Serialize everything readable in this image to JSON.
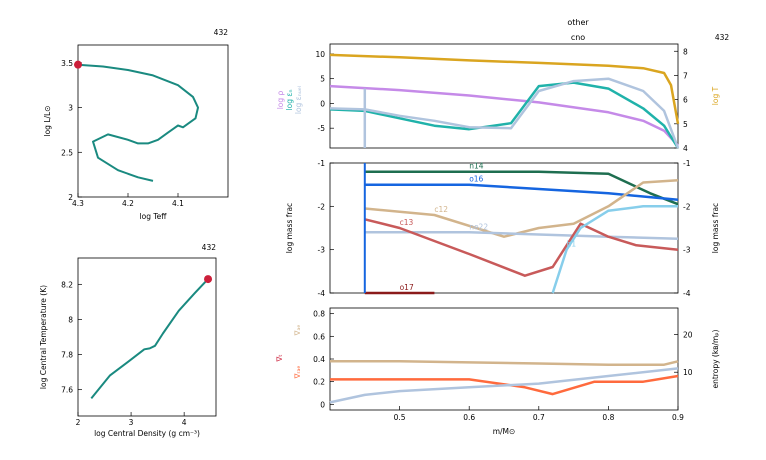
{
  "header": {
    "model_number": "432",
    "line1": "other",
    "line2": "cno"
  },
  "colors": {
    "teal": "#1a8a80",
    "red_dot": "#cc1f3a",
    "gold": "#daa520",
    "violet": "#c58ae8",
    "teal2": "#20b2aa",
    "lightblue": "#b0c4de",
    "darkgreen": "#1e6e50",
    "blue": "#1565e0",
    "tan": "#d2b48c",
    "indianred": "#c85a5a",
    "maroon": "#8b1a1a",
    "skyblue": "#87ceeb",
    "orange": "#ff6a3d",
    "gray": "#a0a0a0"
  },
  "chart_data": [
    {
      "id": "hr",
      "type": "line",
      "title": "432",
      "xlabel": "log Teff",
      "ylabel": "log L/L⊙",
      "xlim": [
        4.3,
        4.0
      ],
      "ylim": [
        2.0,
        3.7
      ],
      "xticks": [
        "4.3",
        "4.2",
        "4.1"
      ],
      "yticks": [
        "2",
        "2.5",
        "3",
        "3.5"
      ],
      "series": [
        {
          "x": [
            4.3,
            4.25,
            4.2,
            4.15,
            4.1,
            4.07,
            4.06,
            4.065,
            4.09,
            4.1,
            4.12,
            4.14,
            4.16,
            4.18,
            4.2,
            4.24,
            4.27,
            4.26,
            4.22,
            4.18,
            4.15
          ],
          "y": [
            3.48,
            3.46,
            3.42,
            3.36,
            3.25,
            3.12,
            3.0,
            2.88,
            2.78,
            2.8,
            2.72,
            2.64,
            2.6,
            2.6,
            2.64,
            2.7,
            2.62,
            2.44,
            2.3,
            2.22,
            2.18
          ]
        }
      ],
      "marker": {
        "x": 4.3,
        "y": 3.48
      }
    },
    {
      "id": "central",
      "type": "line",
      "title": "432",
      "xlabel": "log Central Density (g cm⁻³)",
      "ylabel": "log Central Temperature (K)",
      "xlim": [
        2.0,
        4.6
      ],
      "ylim": [
        7.45,
        8.35
      ],
      "xticks": [
        "2",
        "3",
        "4"
      ],
      "yticks": [
        "7.6",
        "7.8",
        "8",
        "8.2"
      ],
      "series": [
        {
          "x": [
            2.25,
            2.6,
            2.95,
            3.25,
            3.35,
            3.45,
            3.6,
            3.9,
            4.2,
            4.45
          ],
          "y": [
            7.55,
            7.68,
            7.76,
            7.83,
            7.835,
            7.85,
            7.92,
            8.05,
            8.15,
            8.23
          ]
        }
      ],
      "marker": {
        "x": 4.45,
        "y": 8.23
      }
    },
    {
      "id": "structure",
      "type": "line",
      "xlim": [
        0.4,
        0.9
      ],
      "ylim": [
        -9,
        12
      ],
      "y2lim": [
        4,
        8.3
      ],
      "yticks": [
        "-5",
        "0",
        "5",
        "10"
      ],
      "y2ticks": [
        "4",
        "5",
        "6",
        "7",
        "8"
      ],
      "ylabels": [
        "log ρ",
        "log εₙ",
        "log εₙᵤₑₗ"
      ],
      "y2label": "log T",
      "series": [
        {
          "name": "log T",
          "axis": "right",
          "x": [
            0.4,
            0.5,
            0.6,
            0.7,
            0.8,
            0.85,
            0.88,
            0.89,
            0.9
          ],
          "y": [
            7.85,
            7.75,
            7.62,
            7.52,
            7.4,
            7.3,
            7.1,
            6.6,
            5.0
          ]
        },
        {
          "name": "log ρ",
          "x": [
            0.4,
            0.5,
            0.6,
            0.7,
            0.8,
            0.85,
            0.88,
            0.9
          ],
          "y": [
            3.5,
            2.7,
            1.6,
            0.2,
            -1.8,
            -3.5,
            -5.5,
            -8.5
          ]
        },
        {
          "name": "log εₙᵤₑₗ",
          "x": [
            0.4,
            0.45,
            0.5,
            0.55,
            0.6,
            0.66,
            0.7,
            0.75,
            0.8,
            0.85,
            0.88,
            0.9
          ],
          "y": [
            -1.2,
            -1.5,
            -3.0,
            -4.5,
            -5.2,
            -4.0,
            3.5,
            4.2,
            3.0,
            -1.0,
            -4.5,
            -9.0
          ]
        },
        {
          "name": "log εₙ",
          "x": [
            0.4,
            0.45,
            0.5,
            0.55,
            0.6,
            0.66,
            0.7,
            0.75,
            0.8,
            0.85,
            0.88,
            0.9
          ],
          "y": [
            -1.0,
            -1.2,
            -2.5,
            -3.5,
            -4.8,
            -5.0,
            2.5,
            4.5,
            5.0,
            2.5,
            -1.5,
            -9.0
          ]
        }
      ]
    },
    {
      "id": "abundance",
      "type": "line",
      "xlim": [
        0.4,
        0.9
      ],
      "ylim": [
        -4,
        -1
      ],
      "yticks": [
        "-4",
        "-3",
        "-2",
        "-1"
      ],
      "ylabel": "log mass frac",
      "y2label": "log mass frac",
      "series": [
        {
          "name": "n14",
          "x": [
            0.45,
            0.6,
            0.7,
            0.8,
            0.86,
            0.9
          ],
          "y": [
            -1.2,
            -1.2,
            -1.2,
            -1.25,
            -1.7,
            -1.95
          ]
        },
        {
          "name": "o16",
          "x": [
            0.45,
            0.6,
            0.7,
            0.8,
            0.9
          ],
          "y": [
            -1.5,
            -1.5,
            -1.6,
            -1.7,
            -1.85
          ]
        },
        {
          "name": "c12",
          "x": [
            0.45,
            0.55,
            0.65,
            0.7,
            0.75,
            0.8,
            0.85,
            0.9
          ],
          "y": [
            -2.05,
            -2.2,
            -2.7,
            -2.5,
            -2.4,
            -2.0,
            -1.45,
            -1.4
          ]
        },
        {
          "name": "ne22",
          "x": [
            0.45,
            0.6,
            0.7,
            0.8,
            0.9
          ],
          "y": [
            -2.6,
            -2.6,
            -2.65,
            -2.7,
            -2.75
          ]
        },
        {
          "name": "c13",
          "x": [
            0.45,
            0.5,
            0.6,
            0.68,
            0.72,
            0.76,
            0.8,
            0.84,
            0.9
          ],
          "y": [
            -2.3,
            -2.5,
            -3.1,
            -3.6,
            -3.4,
            -2.4,
            -2.7,
            -2.9,
            -3.0
          ]
        },
        {
          "name": "h1",
          "x": [
            0.72,
            0.74,
            0.76,
            0.8,
            0.85,
            0.9
          ],
          "y": [
            -4.0,
            -3.0,
            -2.5,
            -2.1,
            -2.0,
            -2.0
          ]
        },
        {
          "name": "o17",
          "x": [
            0.45,
            0.5,
            0.55
          ],
          "y": [
            -4.0,
            -4.0,
            -4.0
          ]
        }
      ],
      "labels": [
        "n14",
        "o16",
        "c12",
        "ne22",
        "c13",
        "h1",
        "o17"
      ]
    },
    {
      "id": "gradients",
      "type": "line",
      "xlim": [
        0.4,
        0.9
      ],
      "xlabel": "m/M⊙",
      "xticks": [
        "0.5",
        "0.6",
        "0.7",
        "0.8",
        "0.9"
      ],
      "ylim": [
        -0.05,
        0.85
      ],
      "yticks": [
        "0",
        "0.2",
        "0.4",
        "0.6",
        "0.8"
      ],
      "y2ticks": [
        "10",
        "20"
      ],
      "y2label": "entropy (kʙ/mₚ)",
      "ylabels": [
        "∇ₐₑ",
        "∇ₜ",
        "∇ᵣₐₑ"
      ],
      "series": [
        {
          "name": "∇ₐₑ",
          "x": [
            0.4,
            0.5,
            0.6,
            0.7,
            0.8,
            0.88,
            0.9
          ],
          "y": [
            0.38,
            0.38,
            0.37,
            0.36,
            0.35,
            0.35,
            0.38
          ]
        },
        {
          "name": "∇ᵣₐₑ",
          "x": [
            0.4,
            0.5,
            0.6,
            0.68,
            0.72,
            0.78,
            0.85,
            0.9
          ],
          "y": [
            0.22,
            0.22,
            0.22,
            0.15,
            0.09,
            0.2,
            0.2,
            0.25
          ]
        },
        {
          "name": "entropy",
          "axis": "right",
          "x": [
            0.4,
            0.45,
            0.5,
            0.6,
            0.7,
            0.8,
            0.9
          ],
          "y": [
            2,
            4,
            5,
            6,
            7,
            9,
            11
          ]
        }
      ]
    }
  ]
}
